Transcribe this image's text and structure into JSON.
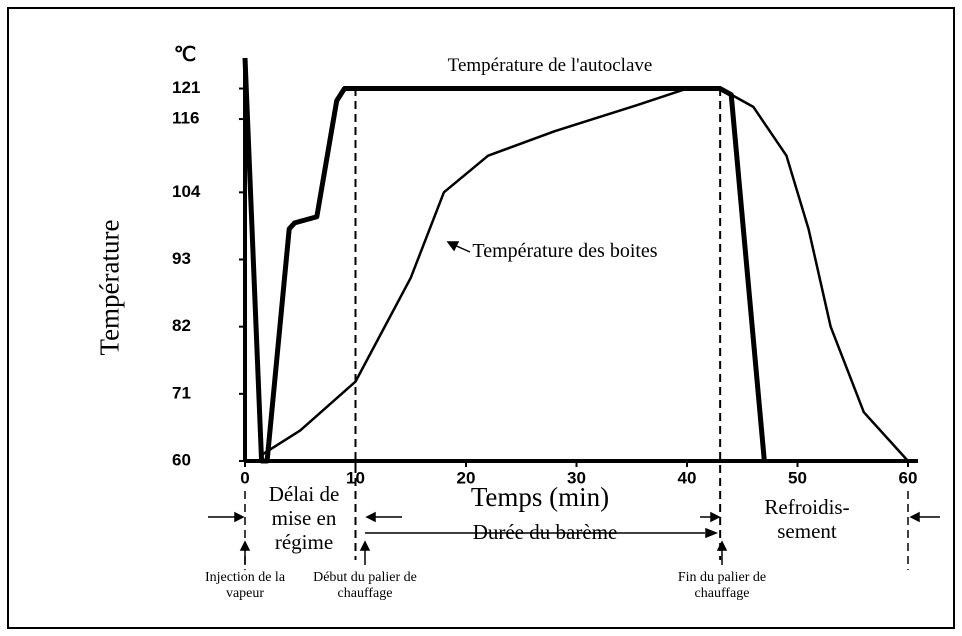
{
  "chart_data": {
    "type": "line",
    "x_label": "Temps (min)",
    "y_label": "Température",
    "y_unit": "℃",
    "xlim": [
      0,
      60
    ],
    "xticks": [
      0,
      10,
      20,
      30,
      40,
      50,
      60
    ],
    "ylim": [
      60,
      126
    ],
    "yticks": [
      60,
      71,
      82,
      93,
      104,
      116,
      121
    ],
    "series": [
      {
        "name": "Température de l'autoclave",
        "color": "#000000",
        "x": [
          0,
          1.5,
          2,
          4,
          4.5,
          6.5,
          8.3,
          9,
          43,
          44,
          47
        ],
        "values": [
          126,
          60,
          60,
          98,
          99,
          100,
          119,
          121,
          121,
          120,
          60
        ]
      },
      {
        "name": "Température des boites",
        "color": "#000000",
        "x": [
          1.5,
          5,
          10,
          15,
          18,
          22,
          28,
          35,
          40,
          43,
          46,
          49,
          51,
          53,
          56,
          60
        ],
        "values": [
          61,
          65,
          73,
          90,
          104,
          110,
          114,
          118,
          121,
          121,
          118,
          110,
          98,
          82,
          68,
          60
        ]
      }
    ],
    "phase_lines": [
      10,
      43
    ],
    "annotations": [
      "Délai de mise en régime",
      "Durée du barème",
      "Refroidis-sement",
      "Injection de la vapeur",
      "Début du palier de chauffage",
      "Fin du palier de chauffage"
    ]
  }
}
